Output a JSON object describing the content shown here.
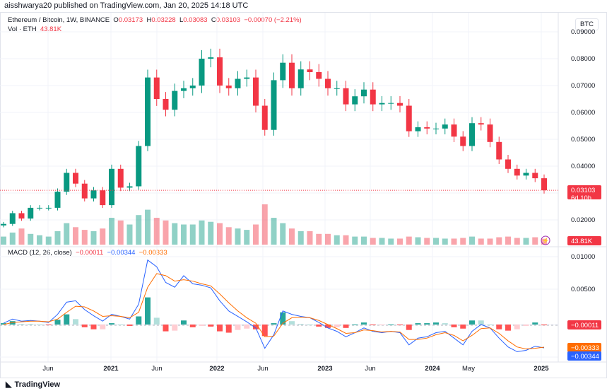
{
  "header": {
    "published": "aisshwarya20 published on TradingView.com, Jan 20, 2025 14:18 UTC",
    "symbol": "Ethereum / Bitcoin, 1W, BINANCE",
    "o_label": "O",
    "o": "0.03173",
    "h_label": "H",
    "h": "0.03228",
    "l_label": "L",
    "l": "0.03083",
    "c_label": "C",
    "c": "0.03103",
    "change": "−0.00070 (−2.21%)",
    "vol_label": "Vol · ETH",
    "vol": "43.81K",
    "currency": "BTC"
  },
  "price_axis": {
    "ticks": [
      "0.09000",
      "0.08000",
      "0.07000",
      "0.06000",
      "0.05000",
      "0.04000",
      "0.02000"
    ],
    "last_price": "0.03103",
    "countdown": "6d 10h",
    "last_volume": "43.81K"
  },
  "macd": {
    "label": "MACD (12, 26, close)",
    "hist": "−0.00011",
    "macd": "−0.00344",
    "signal": "−0.00333",
    "axis_ticks": [
      "0.01000",
      "0.00500"
    ]
  },
  "time_axis": [
    "Jun",
    "2021",
    "Jun",
    "2022",
    "Jun",
    "2023",
    "Jun",
    "2024",
    "May",
    "2025"
  ],
  "footer": {
    "brand": "TradingView"
  },
  "colors": {
    "up": "#089981",
    "down": "#f23645",
    "macd": "#2962ff",
    "signal": "#ff6d00"
  },
  "chart_data": {
    "type": "candlestick",
    "interval_shown": "monthly approximation of weekly candles",
    "start": "2020-01",
    "end": "2025-01",
    "close": [
      0.0185,
      0.0225,
      0.0205,
      0.0245,
      0.0245,
      0.0245,
      0.0305,
      0.0375,
      0.0335,
      0.028,
      0.031,
      0.0255,
      0.039,
      0.032,
      0.0325,
      0.0475,
      0.073,
      0.065,
      0.061,
      0.068,
      0.069,
      0.07,
      0.08,
      0.0805,
      0.07,
      0.069,
      0.0725,
      0.073,
      0.0625,
      0.0535,
      0.072,
      0.0785,
      0.069,
      0.076,
      0.075,
      0.0725,
      0.069,
      0.069,
      0.063,
      0.066,
      0.0685,
      0.063,
      0.0635,
      0.0635,
      0.0625,
      0.053,
      0.0545,
      0.054,
      0.054,
      0.0555,
      0.051,
      0.0475,
      0.056,
      0.0555,
      0.049,
      0.0425,
      0.039,
      0.0365,
      0.0375,
      0.0355,
      0.03103
    ],
    "volume_k": [
      60,
      90,
      120,
      80,
      70,
      60,
      100,
      160,
      130,
      110,
      100,
      120,
      200,
      180,
      150,
      220,
      260,
      200,
      180,
      160,
      150,
      150,
      180,
      170,
      160,
      130,
      120,
      110,
      150,
      300,
      200,
      160,
      120,
      100,
      100,
      80,
      80,
      70,
      70,
      60,
      60,
      50,
      50,
      45,
      45,
      60,
      55,
      50,
      50,
      45,
      45,
      50,
      60,
      45,
      45,
      55,
      60,
      50,
      50,
      55,
      43.81
    ],
    "macd": [
      0.0002,
      0.0008,
      0.0005,
      0.0006,
      0.0005,
      0.0003,
      0.0015,
      0.0033,
      0.0035,
      0.0022,
      0.0013,
      0.0005,
      0.0015,
      0.0012,
      0.0008,
      0.003,
      0.0095,
      0.0085,
      0.0062,
      0.0055,
      0.0072,
      0.006,
      0.0058,
      0.0054,
      0.0035,
      0.002,
      0.0012,
      0.0004,
      -0.0005,
      -0.0035,
      -0.0015,
      0.002,
      0.0015,
      0.0012,
      0.001,
      0.0003,
      -0.0005,
      -0.001,
      -0.0018,
      -0.0012,
      -0.0005,
      -0.001,
      -0.0012,
      -0.001,
      -0.0012,
      -0.003,
      -0.002,
      -0.0018,
      -0.0012,
      -0.001,
      -0.002,
      -0.003,
      -0.001,
      0,
      -0.0005,
      -0.002,
      -0.0033,
      -0.004,
      -0.0038,
      -0.0032,
      -0.00344
    ],
    "signal": [
      0,
      0.0003,
      0.0004,
      0.0005,
      0.0005,
      0.0004,
      0.0008,
      0.0018,
      0.0027,
      0.0026,
      0.002,
      0.0012,
      0.0013,
      0.0012,
      0.001,
      0.0018,
      0.0055,
      0.0075,
      0.0072,
      0.0064,
      0.0066,
      0.0064,
      0.006,
      0.0057,
      0.0045,
      0.0032,
      0.002,
      0.001,
      0.0002,
      -0.0018,
      -0.0017,
      0.0002,
      0.001,
      0.0011,
      0.001,
      0.0006,
      0,
      -0.0006,
      -0.0013,
      -0.0012,
      -0.0008,
      -0.0009,
      -0.0011,
      -0.001,
      -0.0011,
      -0.0022,
      -0.0022,
      -0.002,
      -0.0015,
      -0.0012,
      -0.0016,
      -0.0024,
      -0.0016,
      -0.0006,
      -0.0005,
      -0.0013,
      -0.0024,
      -0.0033,
      -0.0036,
      -0.0035,
      -0.00333
    ],
    "price_range": [
      0.015,
      0.09
    ],
    "macd_range": [
      -0.0055,
      0.0105
    ]
  }
}
